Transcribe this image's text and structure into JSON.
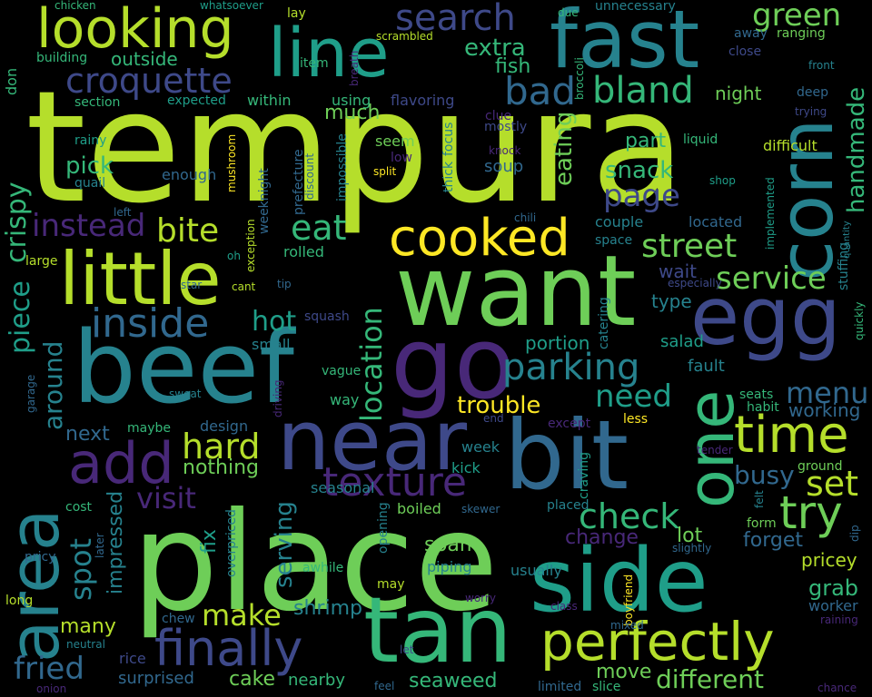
{
  "background": "#000000",
  "palette": {
    "yellow": "#fde725",
    "lime": "#b5de2b",
    "light_green": "#6ece58",
    "green": "#35b779",
    "teal": "#1f9e89",
    "blue_teal": "#26828e",
    "blue": "#31688e",
    "indigo": "#3e4989",
    "purple": "#482878",
    "deep_purple": "#440154"
  },
  "words": {
    "tempura": "tempura",
    "place": "place",
    "want": "want",
    "beef": "beef",
    "side": "side",
    "tan": "tan",
    "area": "area",
    "bit": "bit",
    "near": "near",
    "egg": "egg",
    "go": "go",
    "corn": "corn",
    "fast": "fast",
    "little": "little",
    "cooked": "cooked",
    "one": "one",
    "line": "line",
    "looking": "looking",
    "perfectly": "perfectly",
    "finally": "finally",
    "add": "add",
    "time": "time",
    "texture": "texture",
    "try": "try",
    "croquette": "croquette",
    "parking": "parking",
    "inside": "inside",
    "search": "search",
    "bad": "bad",
    "bland": "bland",
    "green": "green",
    "street": "street",
    "service": "service",
    "instead": "instead",
    "bite": "bite",
    "eat": "eat",
    "page": "page",
    "check": "check",
    "location": "location",
    "hard": "hard",
    "set": "set",
    "make": "make",
    "spot": "spot",
    "visit": "visit",
    "crispy": "crispy",
    "piece": "piece",
    "fried": "fried",
    "menu": "menu",
    "need": "need",
    "around": "around",
    "hot": "hot",
    "busy": "busy",
    "handmade": "handmade",
    "extra": "extra",
    "different": "different",
    "eating": "eating",
    "serving": "serving",
    "shrimp": "shrimp",
    "spam": "spam",
    "seaweed": "seaweed",
    "move": "move",
    "many": "many",
    "impressed": "impressed",
    "trouble": "trouble",
    "snack": "snack",
    "grab": "grab",
    "pick": "pick",
    "much": "much",
    "outside": "outside",
    "night": "night",
    "part": "part",
    "fish": "fish",
    "soup": "soup",
    "wait": "wait",
    "type": "type",
    "portion": "portion",
    "salad": "salad",
    "fault": "fault",
    "change": "change",
    "lot": "lot",
    "forget": "forget",
    "pricey": "pricey",
    "working": "working",
    "next": "next",
    "nothing": "nothing",
    "fix": "fix",
    "cake": "cake",
    "nearby": "nearby",
    "surprised": "surprised",
    "week": "week",
    "kick": "kick",
    "boiled": "boiled",
    "piping": "piping",
    "usually": "usually",
    "worker": "worker",
    "small": "small",
    "squash": "squash",
    "within": "within",
    "using": "using",
    "flavoring": "flavoring",
    "enough": "enough",
    "quail": "quail",
    "rainy": "rainy",
    "section": "section",
    "expected": "expected",
    "building": "building",
    "chicken": "chicken",
    "whatsoever": "whatsoever",
    "lay": "lay",
    "scrambled": "scrambled",
    "due": "due",
    "unnecessary": "unnecessary",
    "away": "away",
    "ranging": "ranging",
    "close": "close",
    "front": "front",
    "deep": "deep",
    "trying": "trying",
    "liquid": "liquid",
    "difficult": "difficult",
    "shop": "shop",
    "implemented": "implemented",
    "stuffing": "stuffing",
    "quantity": "quantity",
    "quickly": "quickly",
    "couple": "couple",
    "located": "located",
    "space": "space",
    "chili": "chili",
    "especially": "especially",
    "catering": "catering",
    "seem": "seem",
    "low": "low",
    "split": "split",
    "mostly": "mostly",
    "clue": "clue",
    "knock": "knock",
    "thick": "thick",
    "focus": "focus",
    "impossible": "impossible",
    "mushroom": "mushroom",
    "weeknight": "weeknight",
    "prefecture": "prefecture",
    "discount": "discount",
    "exception": "exception",
    "oh": "oh",
    "cant": "cant",
    "tip": "tip",
    "star": "star",
    "rolled": "rolled",
    "large": "large",
    "left": "left",
    "don": "don",
    "item": "item",
    "breath": "breath",
    "broccoli": "broccoli",
    "vague": "vague",
    "way": "way",
    "maybe": "maybe",
    "design": "design",
    "sweat": "sweat",
    "garage": "garage",
    "driving": "driving",
    "end": "end",
    "except": "except",
    "less": "less",
    "seats": "seats",
    "habit": "habit",
    "ground": "ground",
    "tender": "tender",
    "craving": "craving",
    "seasonal": "seasonal",
    "overpriced": "overpriced",
    "opening": "opening",
    "skewer": "skewer",
    "placed": "placed",
    "felt": "felt",
    "form": "form",
    "dip": "dip",
    "slightly": "slightly",
    "cost": "cost",
    "later": "later",
    "pricy": "pricy",
    "awhile": "awhile",
    "boyfriend": "boyfriend",
    "may": "may",
    "worry": "worry",
    "class": "class",
    "mixed": "mixed",
    "raining": "raining",
    "long": "long",
    "chew": "chew",
    "neutral": "neutral",
    "rice": "rice",
    "let": "let",
    "feel": "feel",
    "limited": "limited",
    "slice": "slice",
    "chance": "chance",
    "onion": "onion"
  }
}
